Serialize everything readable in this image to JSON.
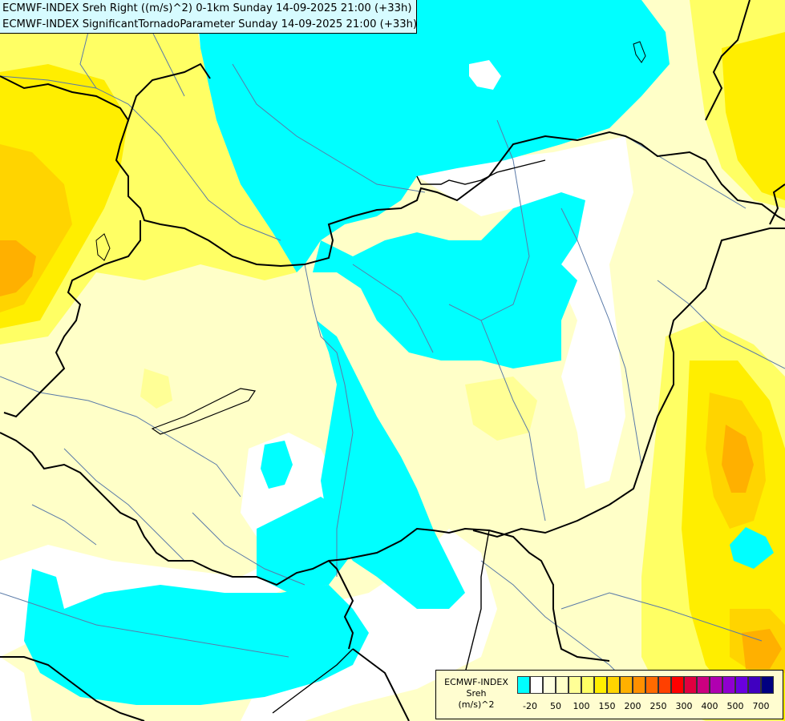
{
  "title": {
    "line1": "ECMWF-INDEX Sreh Right ((m/s)^2) 0-1km Sunday 14-09-2025 21:00 (+33h)",
    "line2": "ECMWF-INDEX SignificantTornadoParameter Sunday 14-09-2025 21:00 (+33h)"
  },
  "legend": {
    "title_line1": "ECMWF-INDEX",
    "title_line2": "Sreh",
    "title_line3": "(m/s)^2",
    "colors": [
      "#00ffff",
      "#ffffff",
      "#ffffe0",
      "#ffffc8",
      "#ffff96",
      "#ffff64",
      "#ffee00",
      "#ffd400",
      "#ffb000",
      "#ff9000",
      "#ff6a00",
      "#ff4000",
      "#ff0000",
      "#e00040",
      "#cc0080",
      "#b000b0",
      "#9000d0",
      "#6a00e0",
      "#4000c0",
      "#000080"
    ],
    "tick_labels": [
      "-20",
      "50",
      "100",
      "150",
      "200",
      "250",
      "300",
      "400",
      "500",
      "700"
    ]
  }
}
